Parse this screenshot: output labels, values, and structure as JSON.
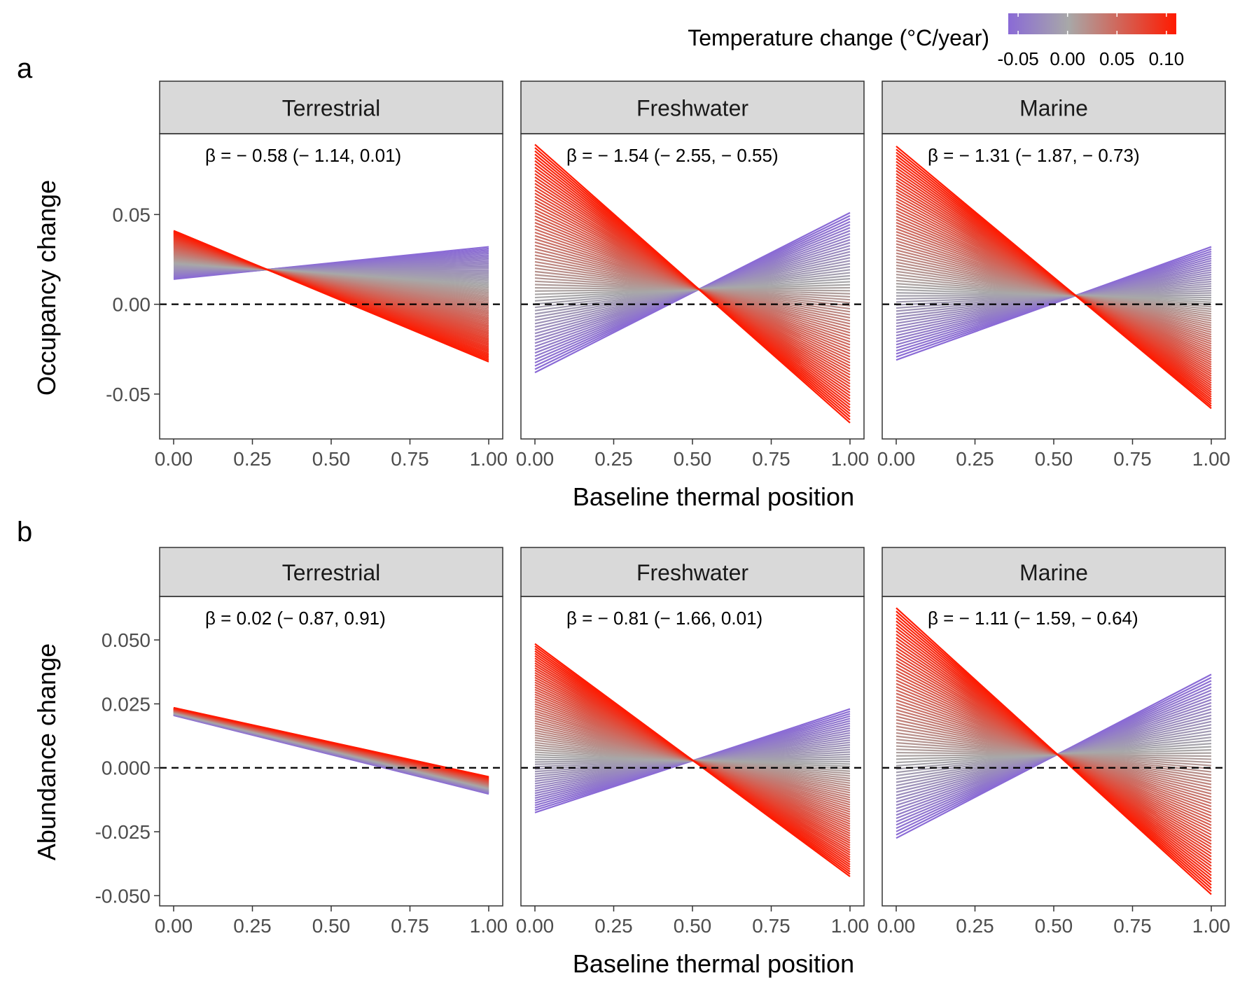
{
  "legend": {
    "title": "Temperature change (°C/year)",
    "ticks": [
      "-0.05",
      "0.00",
      "0.05",
      "0.10"
    ],
    "tick_values": [
      -0.05,
      0.0,
      0.05,
      0.1
    ],
    "range": [
      -0.06,
      0.11
    ],
    "colors": {
      "low": "#8a6ad6",
      "mid": "#a8a8a8",
      "high": "#ff1a00"
    }
  },
  "chart_data": [
    {
      "type": "area",
      "panel_label": "a",
      "xlabel": "Baseline thermal position",
      "ylabel": "Occupancy change",
      "xlim": [
        0,
        1
      ],
      "ylim": [
        -0.075,
        0.095
      ],
      "xticks": [
        "0.00",
        "0.25",
        "0.50",
        "0.75",
        "1.00"
      ],
      "xtick_values": [
        0,
        0.25,
        0.5,
        0.75,
        1
      ],
      "yticks": [
        "0.05",
        "0.00",
        "-0.05"
      ],
      "ytick_values": [
        0.05,
        0.0,
        -0.05
      ],
      "reference_line_y": 0,
      "facets": [
        {
          "title": "Terrestrial",
          "annotation": "β = − 0.58 (− 1.14, 0.01)",
          "lines": [
            {
              "temperature": -0.05,
              "y0": 0.014,
              "y1": 0.032
            },
            {
              "temperature": 0.1,
              "y0": 0.041,
              "y1": -0.032
            }
          ]
        },
        {
          "title": "Freshwater",
          "annotation": "β = − 1.54 (− 2.55, − 0.55)",
          "lines": [
            {
              "temperature": -0.05,
              "y0": -0.038,
              "y1": 0.051
            },
            {
              "temperature": 0.1,
              "y0": 0.089,
              "y1": -0.066
            }
          ]
        },
        {
          "title": "Marine",
          "annotation": "β = − 1.31 (− 1.87, − 0.73)",
          "lines": [
            {
              "temperature": -0.05,
              "y0": -0.031,
              "y1": 0.032
            },
            {
              "temperature": 0.1,
              "y0": 0.088,
              "y1": -0.058
            }
          ]
        }
      ]
    },
    {
      "type": "area",
      "panel_label": "b",
      "xlabel": "Baseline thermal position",
      "ylabel": "Abundance change",
      "xlim": [
        0,
        1
      ],
      "ylim": [
        -0.054,
        0.067
      ],
      "xticks": [
        "0.00",
        "0.25",
        "0.50",
        "0.75",
        "1.00"
      ],
      "xtick_values": [
        0,
        0.25,
        0.5,
        0.75,
        1
      ],
      "yticks": [
        "0.050",
        "0.025",
        "0.000",
        "-0.025",
        "-0.050"
      ],
      "ytick_values": [
        0.05,
        0.025,
        0.0,
        -0.025,
        -0.05
      ],
      "reference_line_y": 0,
      "facets": [
        {
          "title": "Terrestrial",
          "annotation": "β = 0.02 (− 0.87, 0.91)",
          "lines": [
            {
              "temperature": -0.05,
              "y0": 0.0205,
              "y1": -0.0102
            },
            {
              "temperature": 0.1,
              "y0": 0.0235,
              "y1": -0.0035
            }
          ]
        },
        {
          "title": "Freshwater",
          "annotation": "β = − 0.81 (− 1.66, 0.01)",
          "lines": [
            {
              "temperature": -0.05,
              "y0": -0.0175,
              "y1": 0.023
            },
            {
              "temperature": 0.1,
              "y0": 0.0485,
              "y1": -0.0425
            }
          ]
        },
        {
          "title": "Marine",
          "annotation": "β = − 1.11 (− 1.59, − 0.64)",
          "lines": [
            {
              "temperature": -0.05,
              "y0": -0.0275,
              "y1": 0.0365
            },
            {
              "temperature": 0.1,
              "y0": 0.0625,
              "y1": -0.0495
            }
          ]
        }
      ]
    }
  ]
}
